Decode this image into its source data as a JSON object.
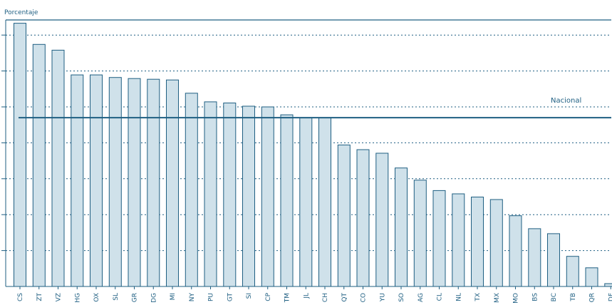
{
  "chart_data": {
    "type": "bar",
    "ylabel": "Porcentaje",
    "categories": [
      "CS",
      "ZT",
      "VZ",
      "HG",
      "OX",
      "SL",
      "GR",
      "DG",
      "MI",
      "NY",
      "PU",
      "GT",
      "SI",
      "CP",
      "TM",
      "JL",
      "CH",
      "QT",
      "CO",
      "YU",
      "SO",
      "AG",
      "CL",
      "NL",
      "TX",
      "MX",
      "MO",
      "BS",
      "BC",
      "TB",
      "QR",
      "DF"
    ],
    "values": [
      73.3,
      67.4,
      65.8,
      58.9,
      58.9,
      58.2,
      57.9,
      57.7,
      57.5,
      53.8,
      51.4,
      51.1,
      50.2,
      50.0,
      47.8,
      47.0,
      47.0,
      39.4,
      38.1,
      37.1,
      33.0,
      29.6,
      26.7,
      25.8,
      24.9,
      24.2,
      19.7,
      16.1,
      14.7,
      8.4,
      5.2,
      0.8
    ],
    "ylim": [
      0,
      75
    ],
    "gridlines": [
      10,
      20,
      30,
      40,
      50,
      60,
      70
    ],
    "grid": true,
    "reference_line": {
      "label": "Nacional",
      "value": 47.0
    },
    "colors": {
      "bar_fill": "#cfe1ea",
      "bar_stroke": "#1f5f82",
      "line": "#1f5f82",
      "grid": "#1f5f82"
    }
  }
}
